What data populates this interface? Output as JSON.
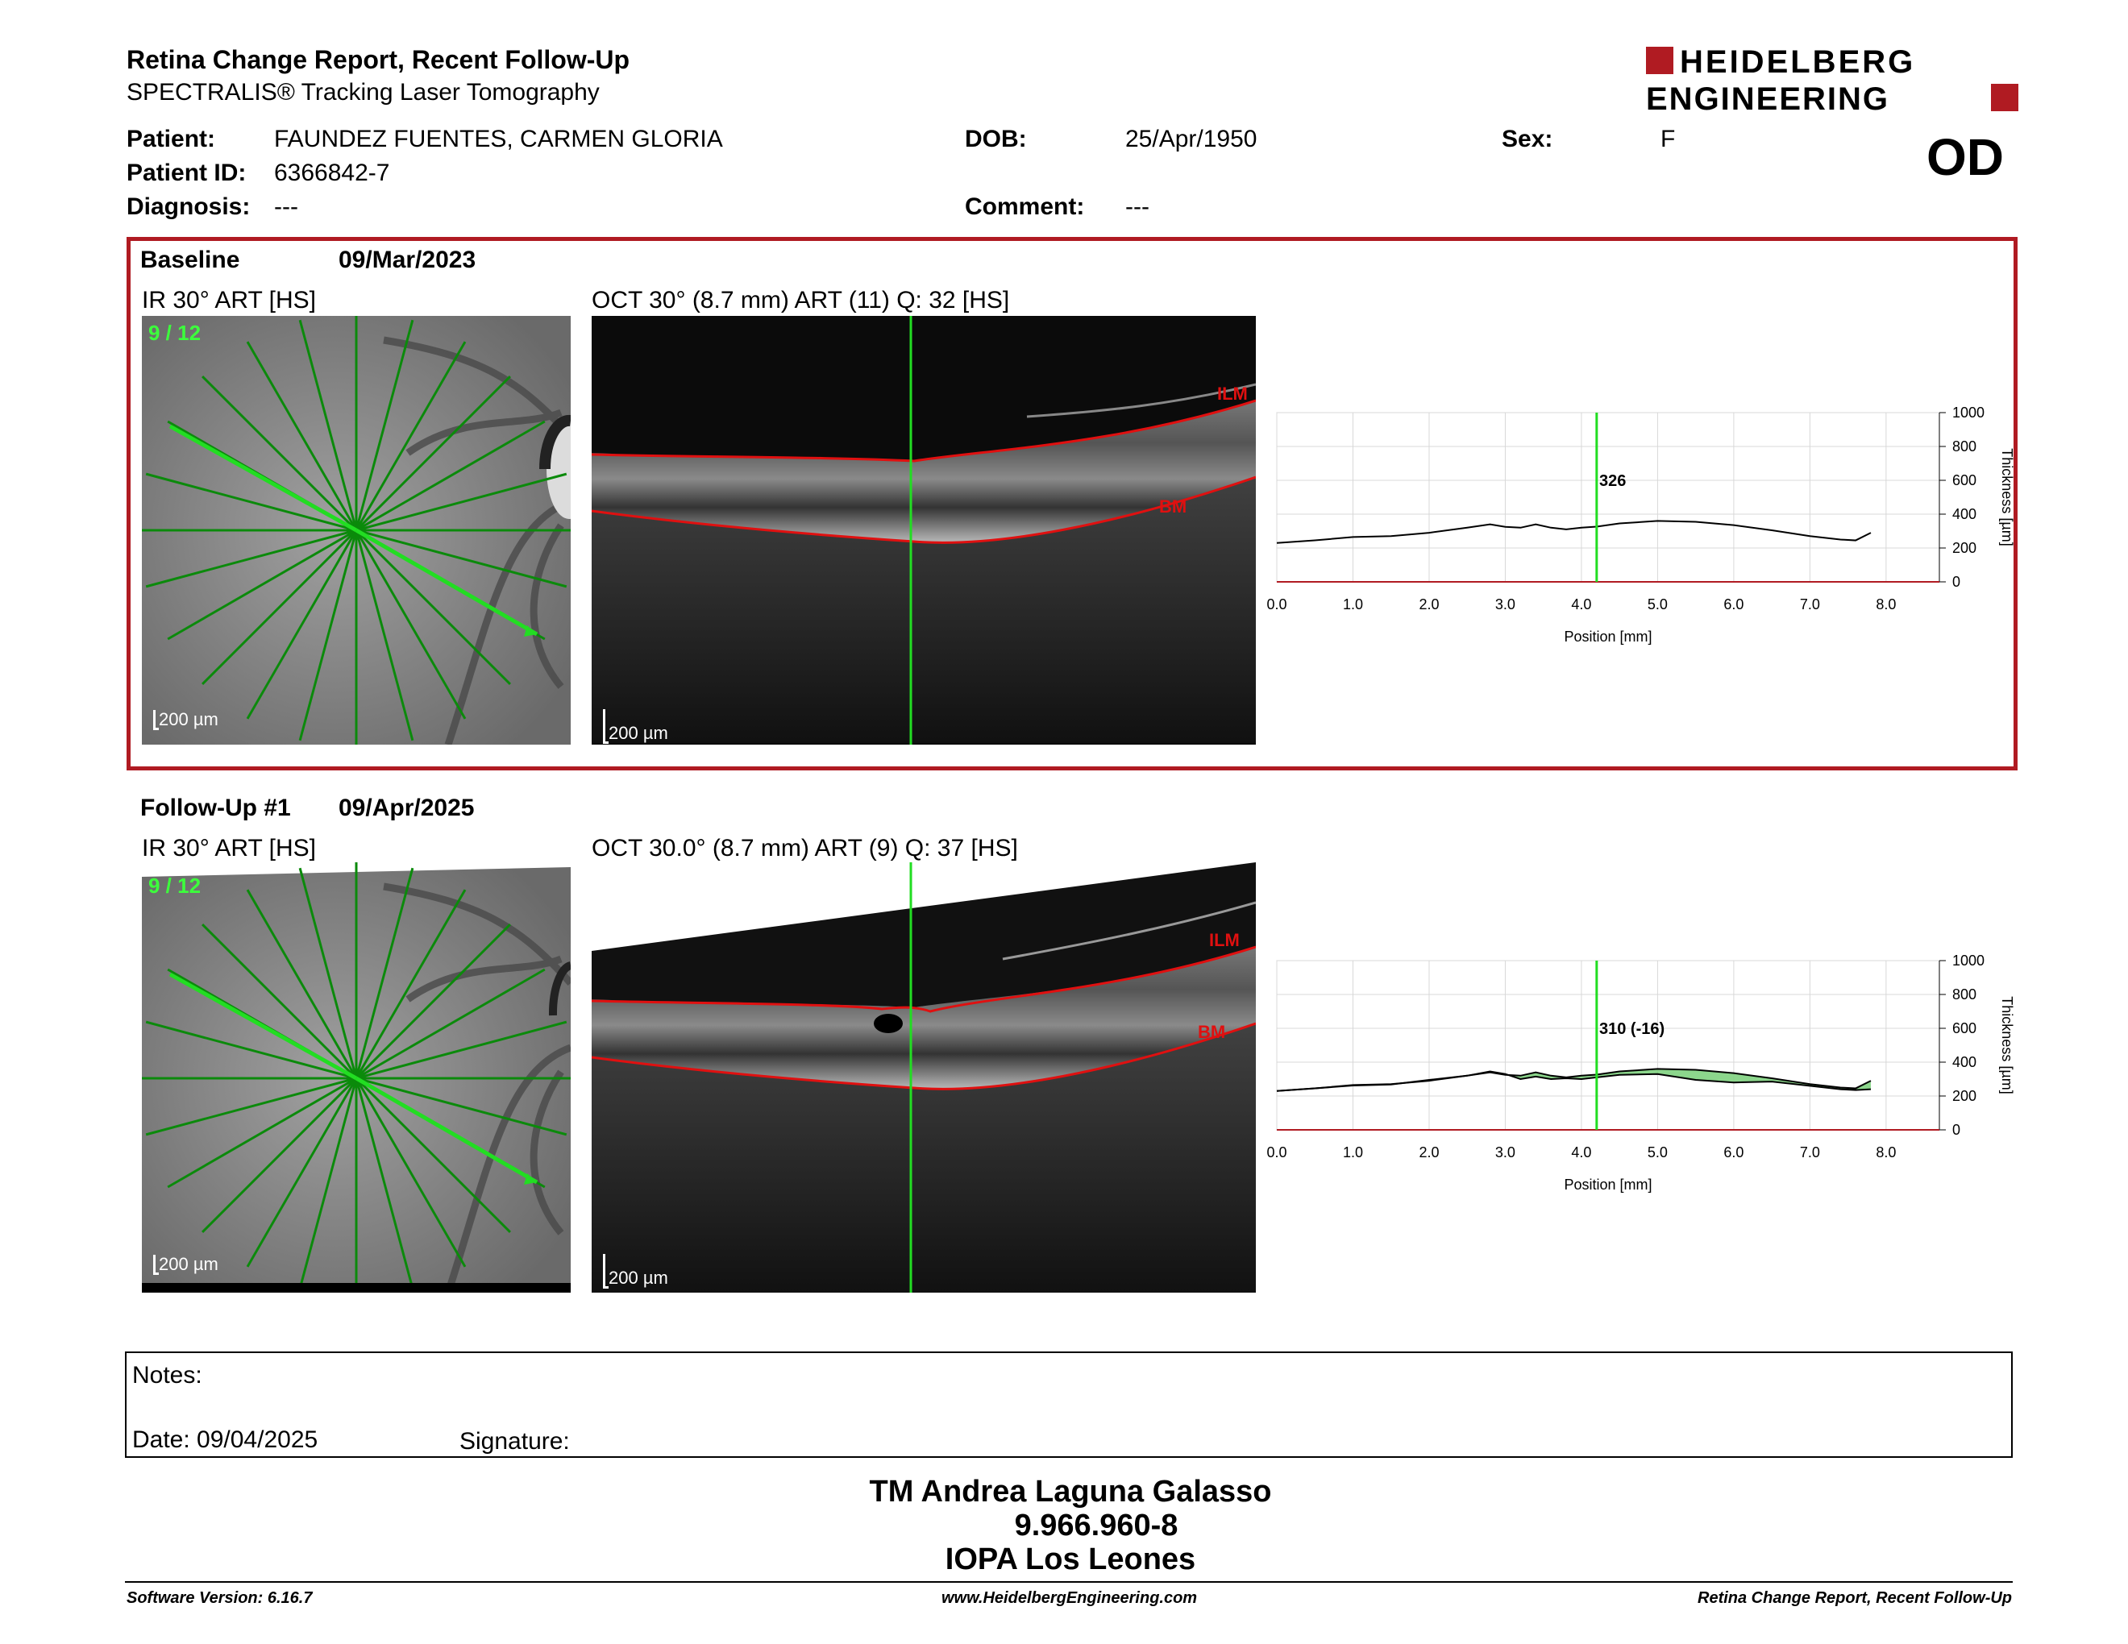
{
  "header": {
    "title": "Retina Change Report, Recent Follow-Up",
    "subtitle": "SPECTRALIS® Tracking Laser Tomography",
    "logo_line1": "HEIDELBERG",
    "logo_line2": "ENGINEERING",
    "eye": "OD"
  },
  "patient": {
    "patient_label": "Patient:",
    "patient_value": "FAUNDEZ FUENTES, CARMEN  GLORIA",
    "dob_label": "DOB:",
    "dob_value": "25/Apr/1950",
    "sex_label": "Sex:",
    "sex_value": "F",
    "id_label": "Patient ID:",
    "id_value": "6366842-7",
    "diagnosis_label": "Diagnosis:",
    "diagnosis_value": "---",
    "comment_label": "Comment:",
    "comment_value": "---"
  },
  "baseline": {
    "label": "Baseline",
    "date": "09/Mar/2023",
    "ir_label": "IR 30° ART [HS]",
    "oct_label": "OCT 30° (8.7 mm) ART (11) Q: 32 [HS]",
    "fraction": "9 / 12",
    "scale_ir": "200 µm",
    "scale_oct": "200 µm",
    "ilm": "ILM",
    "bm": "BM",
    "chart_value_label": "326"
  },
  "followup": {
    "label": "Follow-Up #1",
    "date": "09/Apr/2025",
    "ir_label": "IR 30° ART [HS]",
    "oct_label": "OCT 30.0° (8.7 mm) ART (9) Q: 37 [HS]",
    "fraction": "9 / 12",
    "scale_ir": "200 µm",
    "scale_oct": "200 µm",
    "ilm": "ILM",
    "bm": "BM",
    "chart_value_label": "310 (-16)"
  },
  "chart_data": [
    {
      "type": "line",
      "xlabel": "Position [mm]",
      "ylabel": "Thickness [µm]",
      "xlim": [
        0,
        8.7
      ],
      "ylim": [
        0,
        1000
      ],
      "xticks": [
        "0.0",
        "1.0",
        "2.0",
        "3.0",
        "4.0",
        "5.0",
        "6.0",
        "7.0",
        "8.0"
      ],
      "yticks": [
        "0",
        "200",
        "400",
        "600",
        "800",
        "1000"
      ],
      "cursor_x": 4.2,
      "series": [
        {
          "x": [
            0,
            0.5,
            1.0,
            1.5,
            2.0,
            2.5,
            2.8,
            3.0,
            3.2,
            3.4,
            3.6,
            3.8,
            4.0,
            4.2,
            4.5,
            5.0,
            5.5,
            6.0,
            6.5,
            7.0,
            7.4,
            7.6,
            7.8
          ],
          "values": [
            230,
            245,
            265,
            270,
            290,
            320,
            340,
            325,
            320,
            340,
            320,
            310,
            320,
            326,
            345,
            360,
            355,
            335,
            305,
            270,
            250,
            245,
            290
          ]
        }
      ]
    },
    {
      "type": "line",
      "xlabel": "Position [mm]",
      "ylabel": "Thickness [µm]",
      "xlim": [
        0,
        8.7
      ],
      "ylim": [
        0,
        1000
      ],
      "xticks": [
        "0.0",
        "1.0",
        "2.0",
        "3.0",
        "4.0",
        "5.0",
        "6.0",
        "7.0",
        "8.0"
      ],
      "yticks": [
        "0",
        "200",
        "400",
        "600",
        "800",
        "1000"
      ],
      "cursor_x": 4.2,
      "series": [
        {
          "x": [
            0,
            0.5,
            1.0,
            1.5,
            2.0,
            2.5,
            2.8,
            3.0,
            3.2,
            3.4,
            3.6,
            3.8,
            4.0,
            4.2,
            4.5,
            5.0,
            5.5,
            6.0,
            6.5,
            7.0,
            7.4,
            7.6,
            7.8
          ],
          "values": [
            230,
            245,
            265,
            270,
            290,
            320,
            340,
            325,
            320,
            340,
            320,
            310,
            320,
            326,
            345,
            360,
            355,
            335,
            305,
            270,
            250,
            245,
            290
          ]
        },
        {
          "x": [
            0,
            0.5,
            1.0,
            1.5,
            2.0,
            2.5,
            2.8,
            3.0,
            3.2,
            3.4,
            3.6,
            3.8,
            4.0,
            4.2,
            4.5,
            5.0,
            5.5,
            6.0,
            6.5,
            7.0,
            7.4,
            7.6,
            7.8
          ],
          "values": [
            230,
            245,
            262,
            268,
            295,
            320,
            345,
            330,
            300,
            315,
            300,
            305,
            300,
            310,
            325,
            330,
            295,
            280,
            285,
            260,
            240,
            235,
            240
          ]
        }
      ]
    }
  ],
  "notes": {
    "notes_label": "Notes:",
    "date_label": "Date: 09/04/2025",
    "signature_label": "Signature:"
  },
  "signature": {
    "name": "TM Andrea Laguna Galasso",
    "rut": "9.966.960-8",
    "org": "IOPA Los Leones"
  },
  "footer": {
    "left": "Software Version: 6.16.7",
    "center": "www.HeidelbergEngineering.com",
    "right": "Retina Change Report, Recent Follow-Up"
  },
  "colors": {
    "brand_red": "#b01b22",
    "segmentation": "#e01010",
    "scan_green": "#22dd22",
    "fill_green": "#7fd27f"
  }
}
